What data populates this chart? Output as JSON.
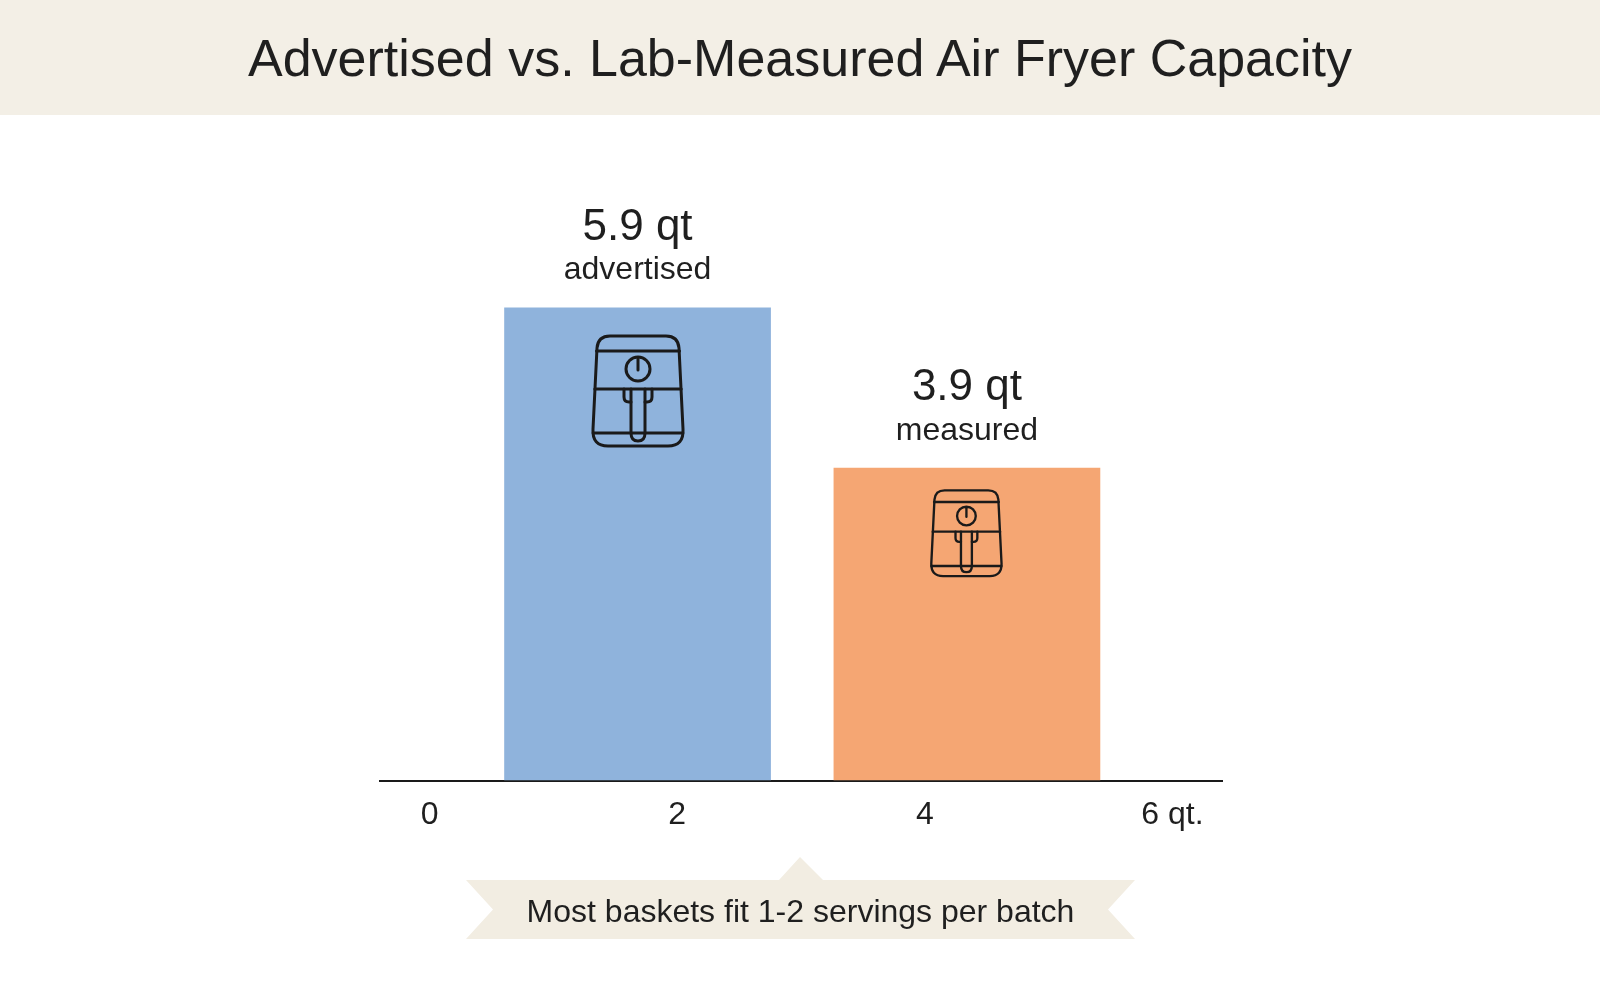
{
  "chart_data": {
    "type": "bar",
    "title": "Advertised vs. Lab-Measured Air Fryer Capacity",
    "series": [
      {
        "name": "advertised",
        "color": "#8fb3dc",
        "x": [
          1.68
        ],
        "values": [
          5.9
        ],
        "value_labels": [
          "5.9 qt"
        ]
      },
      {
        "name": "measured",
        "color": "#f5a673",
        "x": [
          4.34
        ],
        "values": [
          3.9
        ],
        "value_labels": [
          "3.9 qt"
        ]
      }
    ],
    "xlim": [
      -0.4,
      6.4
    ],
    "xticks": [
      0,
      2,
      4,
      {
        "value": 6,
        "label": "6 qt."
      }
    ],
    "tick_labels": "x",
    "annotations": [
      "Most baskets fit 1-2 servings per batch"
    ]
  }
}
